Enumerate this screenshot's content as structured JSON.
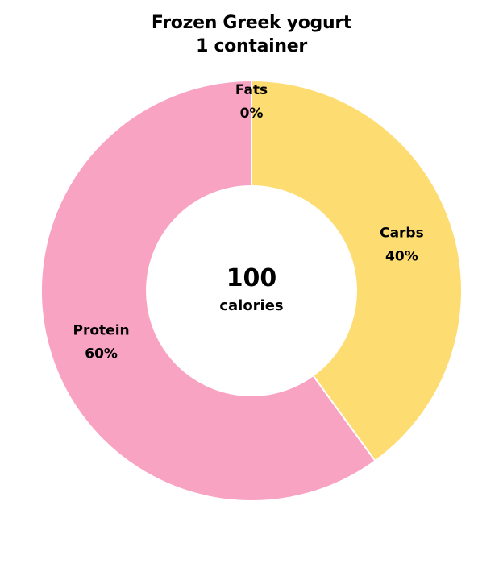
{
  "chart_data": {
    "type": "pie",
    "title": "Frozen Greek yogurt",
    "subtitle": "1 container",
    "center": {
      "value": "100",
      "label": "calories"
    },
    "slices": [
      {
        "label": "Fats",
        "value": 0,
        "value_label": "0%",
        "color": "#f4a4c4"
      },
      {
        "label": "Carbs",
        "value": 40,
        "value_label": "40%",
        "color": "#fddc72"
      },
      {
        "label": "Protein",
        "value": 60,
        "value_label": "60%",
        "color": "#f9a3c3"
      }
    ]
  }
}
